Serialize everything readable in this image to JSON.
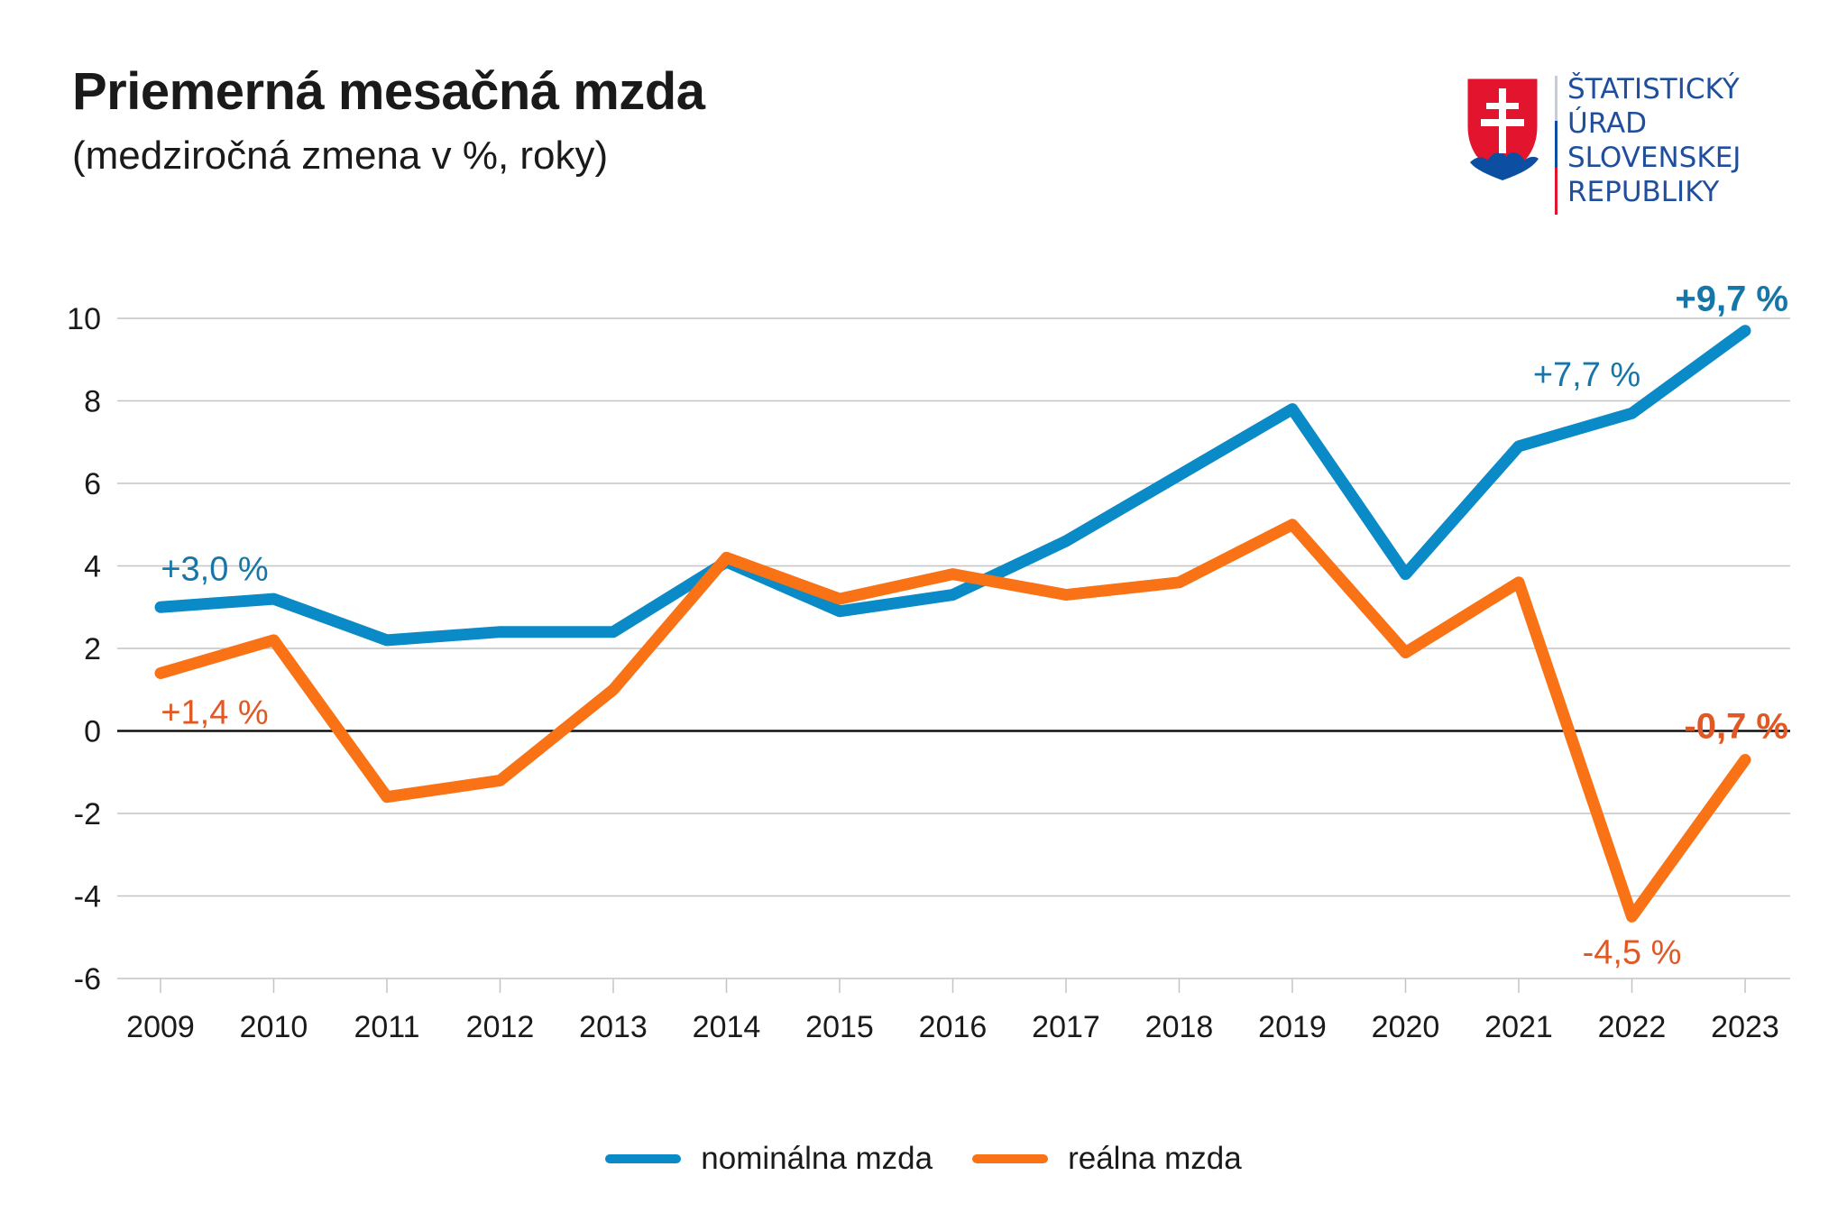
{
  "header": {
    "title": "Priemerná mesačná mzda",
    "subtitle": "(medziročná zmena v %, roky)"
  },
  "logo": {
    "lines": [
      "ŠTATISTICKÝ",
      "ÚRAD",
      "SLOVENSKEJ",
      "REPUBLIKY"
    ]
  },
  "colors": {
    "nominal": "#0a8ac6",
    "real": "#f97316",
    "nominal_label": "#1676a8",
    "real_label": "#e25824"
  },
  "chart_data": {
    "type": "line",
    "title": "Priemerná mesačná mzda",
    "subtitle": "(medziročná zmena v %, roky)",
    "xlabel": "",
    "ylabel": "",
    "categories": [
      "2009",
      "2010",
      "2011",
      "2012",
      "2013",
      "2014",
      "2015",
      "2016",
      "2017",
      "2018",
      "2019",
      "2020",
      "2021",
      "2022",
      "2023"
    ],
    "ylim": [
      -6,
      10
    ],
    "yticks": [
      10,
      8,
      6,
      4,
      2,
      0,
      -2,
      -4,
      -6
    ],
    "grid": true,
    "legend_position": "bottom-center",
    "series": [
      {
        "name": "nominálna mzda",
        "key": "nominal",
        "values": [
          3.0,
          3.2,
          2.2,
          2.4,
          2.4,
          4.1,
          2.9,
          3.3,
          4.6,
          6.2,
          7.8,
          3.8,
          6.9,
          7.7,
          9.7
        ]
      },
      {
        "name": "reálna mzda",
        "key": "real",
        "values": [
          1.4,
          2.2,
          -1.6,
          -1.2,
          1.0,
          4.2,
          3.2,
          3.8,
          3.3,
          3.6,
          5.0,
          1.9,
          3.6,
          -4.5,
          -0.7
        ]
      }
    ],
    "annotations": [
      {
        "text": "+3,0 %",
        "series": "nominal",
        "index": 0,
        "bold": false
      },
      {
        "text": "+7,7 %",
        "series": "nominal",
        "index": 13,
        "bold": false
      },
      {
        "text": "+9,7 %",
        "series": "nominal",
        "index": 14,
        "bold": true
      },
      {
        "text": "+1,4 %",
        "series": "real",
        "index": 0,
        "bold": false
      },
      {
        "text": "-4,5 %",
        "series": "real",
        "index": 13,
        "bold": false
      },
      {
        "text": "-0,7 %",
        "series": "real",
        "index": 14,
        "bold": true
      }
    ]
  }
}
